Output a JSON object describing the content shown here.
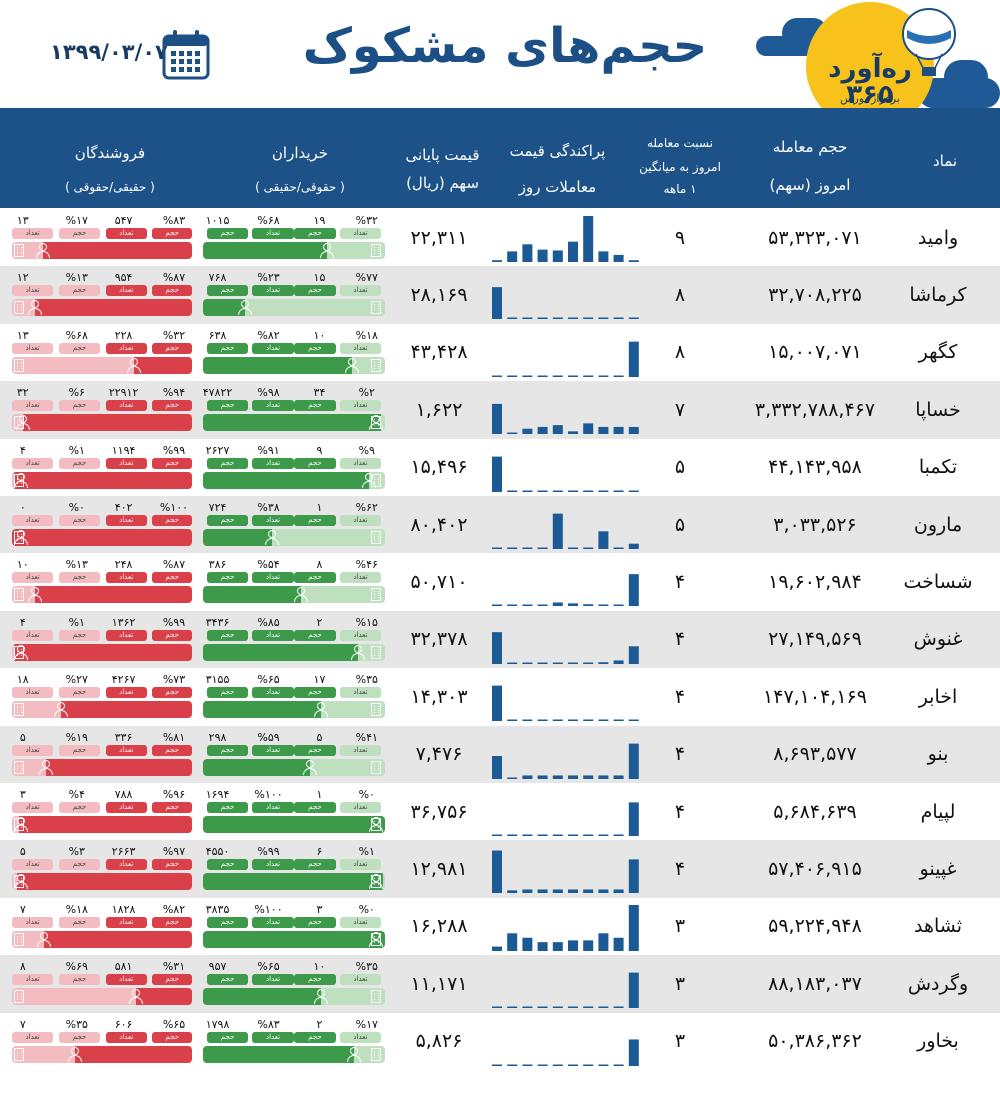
{
  "header": {
    "date": "۱۳۹۹/۰۳/۰۷",
    "title": "حجم‌های مشکوک",
    "logo_main": "ره‌آورد ۳۶۵",
    "logo_sub": "برفراز بورس"
  },
  "columns": {
    "symbol": "نماد",
    "volume_l1": "حجم معامله",
    "volume_l2": "امروز (سهم)",
    "ratio_l1": "نسبت معامله",
    "ratio_l2": "امروز به میانگین",
    "ratio_l3": "۱ ماهه",
    "dist_l1": "پراکندگی قیمت",
    "dist_l2": "معاملات روز",
    "price_l1": "قیمت پایانی",
    "price_l2": "سهم (ریال)",
    "buyers_l1": "خریداران",
    "buyers_l2": "( حقوقی/حقیقی )",
    "sellers_l1": "فروشندگان",
    "sellers_l2": "( حقیقی/حقوقی )"
  },
  "tag_labels": {
    "volume": "حجم",
    "count": "تعداد"
  },
  "colors": {
    "navy": "#1d5289",
    "bar": "#1b5a94",
    "green": "#3c9a4a",
    "green_light": "#bfe0bf",
    "red": "#d9404a",
    "red_light": "#f3bcc0",
    "row_alt": "#e6e6e6"
  },
  "chart_data": {
    "type": "table",
    "rows": [
      {
        "symbol": "وامید",
        "volume": "۵۳,۳۲۳,۰۷۱",
        "ratio": "۹",
        "price": "۲۲,۳۱۱",
        "dist": [
          2,
          12,
          20,
          14,
          13,
          23,
          52,
          12,
          8,
          2
        ],
        "buy": {
          "legal_pct": "%۳۲",
          "legal_count": "۱۹",
          "indiv_pct": "%۶۸",
          "indiv_count": "۱۰۱۵",
          "indiv_share": 0.68
        },
        "sell": {
          "indiv_pct": "%۸۳",
          "indiv_count": "۵۴۷",
          "legal_pct": "%۱۷",
          "legal_count": "۱۳",
          "indiv_share": 0.83
        }
      },
      {
        "symbol": "کرماشا",
        "volume": "۳۲,۷۰۸,۲۲۵",
        "ratio": "۸",
        "price": "۲۸,۱۶۹",
        "dist": [
          36,
          1,
          1,
          1,
          1,
          1,
          1,
          1,
          1,
          1
        ],
        "buy": {
          "legal_pct": "%۷۷",
          "legal_count": "۱۵",
          "indiv_pct": "%۲۳",
          "indiv_count": "۷۶۸",
          "indiv_share": 0.23
        },
        "sell": {
          "indiv_pct": "%۸۷",
          "indiv_count": "۹۵۴",
          "legal_pct": "%۱۳",
          "legal_count": "۱۲",
          "indiv_share": 0.87
        }
      },
      {
        "symbol": "کگهر",
        "volume": "۱۵,۰۰۷,۰۷۱",
        "ratio": "۸",
        "price": "۴۳,۴۲۸",
        "dist": [
          1,
          1,
          1,
          1,
          1,
          1,
          1,
          1,
          1,
          40
        ],
        "buy": {
          "legal_pct": "%۱۸",
          "legal_count": "۱۰",
          "indiv_pct": "%۸۲",
          "indiv_count": "۶۳۸",
          "indiv_share": 0.82
        },
        "sell": {
          "indiv_pct": "%۳۲",
          "indiv_count": "۲۲۸",
          "legal_pct": "%۶۸",
          "legal_count": "۱۳",
          "indiv_share": 0.32
        }
      },
      {
        "symbol": "خساپا",
        "volume": "۳,۳۳۲,۷۸۸,۴۶۷",
        "ratio": "۷",
        "price": "۱,۶۲۲",
        "dist": [
          34,
          1,
          6,
          8,
          10,
          3,
          12,
          8,
          8,
          8
        ],
        "buy": {
          "legal_pct": "%۲",
          "legal_count": "۳۴",
          "indiv_pct": "%۹۸",
          "indiv_count": "۴۷۸۲۲",
          "indiv_share": 0.98
        },
        "sell": {
          "indiv_pct": "%۹۴",
          "indiv_count": "۲۲۹۱۲",
          "legal_pct": "%۶",
          "legal_count": "۳۲",
          "indiv_share": 0.94
        }
      },
      {
        "symbol": "تکمبا",
        "volume": "۴۴,۱۴۳,۹۵۸",
        "ratio": "۵",
        "price": "۱۵,۴۹۶",
        "dist": [
          40,
          1,
          1,
          1,
          1,
          1,
          1,
          1,
          1,
          1
        ],
        "buy": {
          "legal_pct": "%۹",
          "legal_count": "۹",
          "indiv_pct": "%۹۱",
          "indiv_count": "۲۶۲۷",
          "indiv_share": 0.91
        },
        "sell": {
          "indiv_pct": "%۹۹",
          "indiv_count": "۱۱۹۴",
          "legal_pct": "%۱",
          "legal_count": "۴",
          "indiv_share": 0.99
        }
      },
      {
        "symbol": "مارون",
        "volume": "۳,۰۳۳,۵۲۶",
        "ratio": "۵",
        "price": "۸۰,۴۰۲",
        "dist": [
          1,
          1,
          1,
          1,
          40,
          1,
          1,
          20,
          1,
          6
        ],
        "buy": {
          "legal_pct": "%۶۲",
          "legal_count": "۱",
          "indiv_pct": "%۳۸",
          "indiv_count": "۷۲۴",
          "indiv_share": 0.38
        },
        "sell": {
          "indiv_pct": "%۱۰۰",
          "indiv_count": "۴۰۲",
          "legal_pct": "%۰",
          "legal_count": "۰",
          "indiv_share": 1.0
        }
      },
      {
        "symbol": "شساخت",
        "volume": "۱۹,۶۰۲,۹۸۴",
        "ratio": "۴",
        "price": "۵۰,۷۱۰",
        "dist": [
          1,
          1,
          1,
          1,
          4,
          3,
          2,
          1,
          1,
          36
        ],
        "buy": {
          "legal_pct": "%۴۶",
          "legal_count": "۸",
          "indiv_pct": "%۵۴",
          "indiv_count": "۳۸۶",
          "indiv_share": 0.54
        },
        "sell": {
          "indiv_pct": "%۸۷",
          "indiv_count": "۲۴۸",
          "legal_pct": "%۱۳",
          "legal_count": "۱۰",
          "indiv_share": 0.87
        }
      },
      {
        "symbol": "غنوش",
        "volume": "۲۷,۱۴۹,۵۶۹",
        "ratio": "۴",
        "price": "۳۲,۳۷۸",
        "dist": [
          36,
          1,
          1,
          1,
          1,
          1,
          1,
          2,
          4,
          20
        ],
        "buy": {
          "legal_pct": "%۱۵",
          "legal_count": "۲",
          "indiv_pct": "%۸۵",
          "indiv_count": "۳۴۳۶",
          "indiv_share": 0.85
        },
        "sell": {
          "indiv_pct": "%۹۹",
          "indiv_count": "۱۳۶۲",
          "legal_pct": "%۱",
          "legal_count": "۴",
          "indiv_share": 0.99
        }
      },
      {
        "symbol": "اخابر",
        "volume": "۱۴۷,۱۰۴,۱۶۹",
        "ratio": "۴",
        "price": "۱۴,۳۰۳",
        "dist": [
          40,
          1,
          1,
          1,
          1,
          1,
          1,
          1,
          1,
          1
        ],
        "buy": {
          "legal_pct": "%۳۵",
          "legal_count": "۱۷",
          "indiv_pct": "%۶۵",
          "indiv_count": "۳۱۵۵",
          "indiv_share": 0.65
        },
        "sell": {
          "indiv_pct": "%۷۳",
          "indiv_count": "۴۲۶۷",
          "legal_pct": "%۲۷",
          "legal_count": "۱۸",
          "indiv_share": 0.73
        }
      },
      {
        "symbol": "بنو",
        "volume": "۸,۶۹۳,۵۷۷",
        "ratio": "۴",
        "price": "۷,۴۷۶",
        "dist": [
          26,
          1,
          4,
          4,
          4,
          4,
          4,
          4,
          4,
          40
        ],
        "buy": {
          "legal_pct": "%۴۱",
          "legal_count": "۵",
          "indiv_pct": "%۵۹",
          "indiv_count": "۲۹۸",
          "indiv_share": 0.59
        },
        "sell": {
          "indiv_pct": "%۸۱",
          "indiv_count": "۳۳۶",
          "legal_pct": "%۱۹",
          "legal_count": "۵",
          "indiv_share": 0.81
        }
      },
      {
        "symbol": "لپیام",
        "volume": "۵,۶۸۴,۶۳۹",
        "ratio": "۴",
        "price": "۳۶,۷۵۶",
        "dist": [
          1,
          1,
          1,
          1,
          1,
          1,
          1,
          1,
          1,
          38
        ],
        "buy": {
          "legal_pct": "%۰",
          "legal_count": "۱",
          "indiv_pct": "%۱۰۰",
          "indiv_count": "۱۶۹۴",
          "indiv_share": 1.0
        },
        "sell": {
          "indiv_pct": "%۹۶",
          "indiv_count": "۷۸۸",
          "legal_pct": "%۴",
          "legal_count": "۳",
          "indiv_share": 0.96
        }
      },
      {
        "symbol": "غپینو",
        "volume": "۵۷,۴۰۶,۹۱۵",
        "ratio": "۴",
        "price": "۱۲,۹۸۱",
        "dist": [
          48,
          3,
          4,
          4,
          4,
          4,
          4,
          4,
          4,
          38
        ],
        "buy": {
          "legal_pct": "%۱",
          "legal_count": "۶",
          "indiv_pct": "%۹۹",
          "indiv_count": "۴۵۵۰",
          "indiv_share": 0.99
        },
        "sell": {
          "indiv_pct": "%۹۷",
          "indiv_count": "۲۶۶۳",
          "legal_pct": "%۳",
          "legal_count": "۵",
          "indiv_share": 0.97
        }
      },
      {
        "symbol": "ثشاهد",
        "volume": "۵۹,۲۲۴,۹۴۸",
        "ratio": "۳",
        "price": "۱۶,۲۸۸",
        "dist": [
          5,
          20,
          15,
          10,
          10,
          12,
          12,
          20,
          15,
          52
        ],
        "buy": {
          "legal_pct": "%۰",
          "legal_count": "۳",
          "indiv_pct": "%۱۰۰",
          "indiv_count": "۳۸۳۵",
          "indiv_share": 1.0
        },
        "sell": {
          "indiv_pct": "%۸۲",
          "indiv_count": "۱۸۲۸",
          "legal_pct": "%۱۸",
          "legal_count": "۷",
          "indiv_share": 0.82
        }
      },
      {
        "symbol": "وگردش",
        "volume": "۸۸,۱۸۳,۰۳۷",
        "ratio": "۳",
        "price": "۱۱,۱۷۱",
        "dist": [
          1,
          1,
          1,
          1,
          1,
          1,
          1,
          1,
          1,
          40
        ],
        "buy": {
          "legal_pct": "%۳۵",
          "legal_count": "۱۰",
          "indiv_pct": "%۶۵",
          "indiv_count": "۹۵۷",
          "indiv_share": 0.65
        },
        "sell": {
          "indiv_pct": "%۳۱",
          "indiv_count": "۵۸۱",
          "legal_pct": "%۶۹",
          "legal_count": "۸",
          "indiv_share": 0.31
        }
      },
      {
        "symbol": "بخاور",
        "volume": "۵۰,۳۸۶,۳۶۲",
        "ratio": "۳",
        "price": "۵,۸۲۶",
        "dist": [
          1,
          1,
          1,
          1,
          1,
          1,
          1,
          1,
          1,
          30
        ],
        "buy": {
          "legal_pct": "%۱۷",
          "legal_count": "۲",
          "indiv_pct": "%۸۳",
          "indiv_count": "۱۷۹۸",
          "indiv_share": 0.83
        },
        "sell": {
          "indiv_pct": "%۶۵",
          "indiv_count": "۶۰۶",
          "legal_pct": "%۳۵",
          "legal_count": "۷",
          "indiv_share": 0.65
        }
      }
    ]
  }
}
